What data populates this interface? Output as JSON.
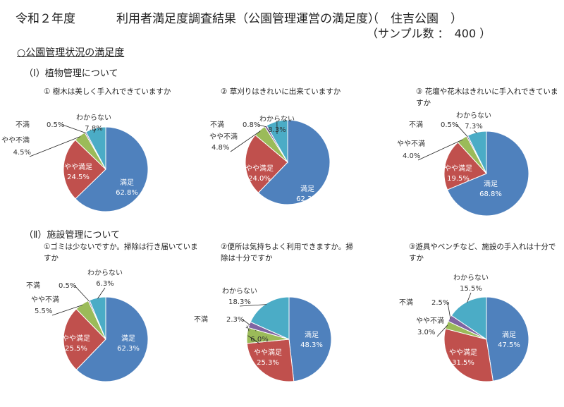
{
  "header": {
    "year": "令和２年度",
    "title": "利用者満足度調査結果（公園管理運営の満足度）",
    "park": "（　住吉公園　）",
    "sample": "（サンプル数 ：　400 ）"
  },
  "section_heading": "○公園管理状況の満足度",
  "groups": [
    {
      "label": "（Ⅰ）植物管理について"
    },
    {
      "label": "（Ⅱ）施設管理について"
    }
  ],
  "colors": {
    "満足": "#4f81bd",
    "やや満足": "#c0504d",
    "やや不満": "#9bbb59",
    "不満": "#8064a2",
    "わからない": "#4bacc6"
  },
  "chart_data": [
    {
      "type": "pie",
      "title": "① 樹木は美しく手入れできていますか",
      "categories": [
        "満足",
        "やや満足",
        "やや不満",
        "不満",
        "わからない"
      ],
      "labels": [
        "満足",
        "やや満足",
        "やや不満",
        "不満",
        "わからない"
      ],
      "values": [
        62.8,
        24.5,
        4.5,
        0.5,
        7.8
      ],
      "value_labels": [
        "62.8%",
        "24.5%",
        "4.5%",
        "0.5%",
        "7.8%"
      ]
    },
    {
      "type": "pie",
      "title": "② 草刈りはきれいに出来ていますか",
      "categories": [
        "満足",
        "やや満足",
        "やや不満",
        "不満",
        "わからない"
      ],
      "labels": [
        "満足",
        "やや満足",
        "やや不満",
        "不満",
        "わからない"
      ],
      "values": [
        62.3,
        24.0,
        4.8,
        0.8,
        8.3
      ],
      "value_labels": [
        "62.3%",
        "24.0%",
        "4.8%",
        "0.8%",
        "8.3%"
      ]
    },
    {
      "type": "pie",
      "title": "③ 花壇や花木はきれいに手入れできていますか",
      "categories": [
        "満足",
        "やや満足",
        "やや不満",
        "不満",
        "わからない"
      ],
      "labels": [
        "満足",
        "やや満足",
        "やや不満",
        "不満",
        "わからない"
      ],
      "values": [
        68.8,
        19.5,
        4.0,
        0.5,
        7.3
      ],
      "value_labels": [
        "68.8%",
        "19.5%",
        "4.0%",
        "0.5%",
        "7.3%"
      ]
    },
    {
      "type": "pie",
      "title": "①ゴミは少ないですか。掃除は行き届いていますか",
      "categories": [
        "満足",
        "やや満足",
        "やや不満",
        "不満",
        "わからない"
      ],
      "labels": [
        "満足",
        "やや満足",
        "やや不満",
        "不満",
        "わからない"
      ],
      "values": [
        62.3,
        25.5,
        5.5,
        0.5,
        6.3
      ],
      "value_labels": [
        "62.3%",
        "25.5%",
        "5.5%",
        "0.5%",
        "6.3%"
      ]
    },
    {
      "type": "pie",
      "title": "②便所は気持ちよく利用できますか。掃除は十分ですか",
      "categories": [
        "満足",
        "やや満足",
        "やや不満",
        "不満",
        "わからない"
      ],
      "labels": [
        "満足",
        "やや満足",
        "やや不満",
        "不満",
        "わからない"
      ],
      "values": [
        48.3,
        25.3,
        6.0,
        2.3,
        18.3
      ],
      "value_labels": [
        "48.3%",
        "25.3%",
        "6.0%",
        "2.3%",
        "18.3%"
      ]
    },
    {
      "type": "pie",
      "title": "③遊具やベンチなど、施設の手入れは十分ですか",
      "categories": [
        "満足",
        "やや満足",
        "やや不満",
        "不満",
        "わからない"
      ],
      "labels": [
        "満足",
        "やや満足",
        "やや不満",
        "不満",
        "わからない"
      ],
      "values": [
        47.5,
        31.5,
        3.0,
        2.5,
        15.5
      ],
      "value_labels": [
        "47.5%",
        "31.5%",
        "3.0%",
        "2.5%",
        "15.5%"
      ]
    }
  ]
}
